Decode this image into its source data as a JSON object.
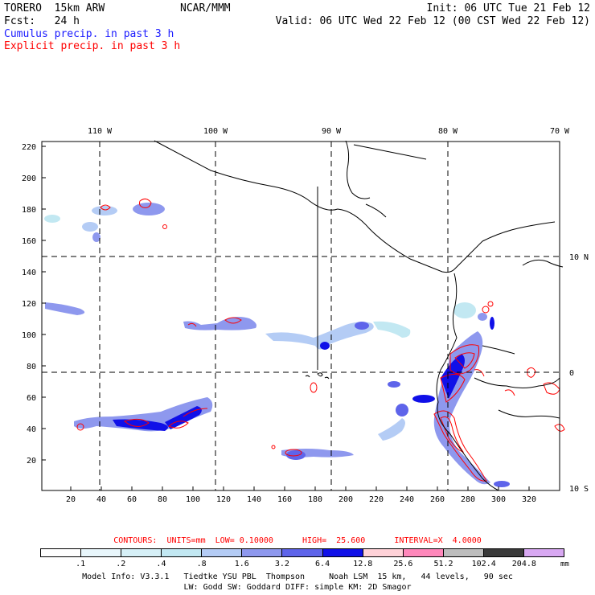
{
  "header": {
    "model": "TORERO  15km ARW",
    "center": "NCAR/MMM",
    "init": "Init: 06 UTC Tue 21 Feb 12",
    "fcst": "Fcst:   24 h",
    "valid": "Valid: 06 UTC Wed 22 Feb 12 (00 CST Wed 22 Feb 12)",
    "field_blue": "Cumulus precip. in past 3 h",
    "field_red": "Explicit precip. in past 3 h"
  },
  "map": {
    "lon_labels": [
      "110 W",
      "100 W",
      "90 W",
      "80 W",
      "70 W"
    ],
    "lat_labels": [
      "10 N",
      "0",
      "10 S"
    ],
    "y_ticks": [
      "220",
      "200",
      "180",
      "160",
      "140",
      "120",
      "100",
      "80",
      "60",
      "40",
      "20"
    ],
    "x_ticks": [
      "20",
      "40",
      "60",
      "80",
      "100",
      "120",
      "140",
      "160",
      "180",
      "200",
      "220",
      "240",
      "260",
      "280",
      "300",
      "320"
    ]
  },
  "contours": {
    "text": "CONTOURS:  UNITS=mm  LOW= 0.10000      HIGH=  25.600      INTERVAL=X  4.0000"
  },
  "legend": {
    "labels": [
      ".1",
      ".2",
      ".4",
      ".8",
      "1.6",
      "3.2",
      "6.4",
      "12.8",
      "25.6",
      "51.2",
      "102.4",
      "204.8"
    ],
    "unit": "mm",
    "colors": [
      "#ffffff",
      "#e8f6fb",
      "#d6f0f7",
      "#c2e8f2",
      "#b4ccf5",
      "#8e98ee",
      "#5e64ea",
      "#1010e8",
      "#ffd2d8",
      "#ff88bb",
      "#bdbdbd",
      "#3a3a3a",
      "#d8a8f2"
    ]
  },
  "footer": {
    "line1": "Model Info: V3.3.1   Tiedtke YSU PBL  Thompson     Noah LSM  15 km,   44 levels,   90 sec",
    "line2": "LW: Godd SW: Goddard DIFF: simple KM: 2D Smagor"
  }
}
